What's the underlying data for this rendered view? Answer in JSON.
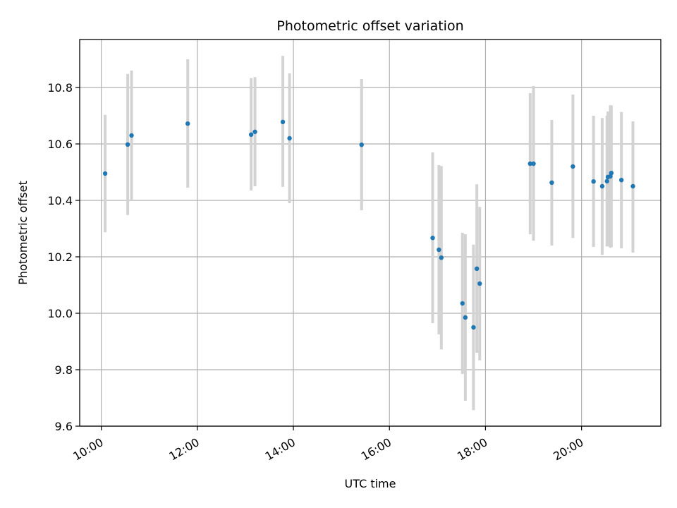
{
  "chart_data": {
    "type": "scatter",
    "title": "Photometric offset variation",
    "xlabel": "UTC time",
    "ylabel": "Photometric offset",
    "x_unit": "UTC time of day (hours)",
    "xlim": [
      9.55,
      21.65
    ],
    "ylim": [
      9.6,
      10.97
    ],
    "x_ticks": [
      {
        "value": 10,
        "label": "10:00"
      },
      {
        "value": 12,
        "label": "12:00"
      },
      {
        "value": 14,
        "label": "14:00"
      },
      {
        "value": 16,
        "label": "16:00"
      },
      {
        "value": 18,
        "label": "18:00"
      },
      {
        "value": 20,
        "label": "20:00"
      }
    ],
    "y_ticks": [
      {
        "value": 9.6,
        "label": "9.6"
      },
      {
        "value": 9.8,
        "label": "9.8"
      },
      {
        "value": 10.0,
        "label": "10.0"
      },
      {
        "value": 10.2,
        "label": "10.2"
      },
      {
        "value": 10.4,
        "label": "10.4"
      },
      {
        "value": 10.6,
        "label": "10.6"
      },
      {
        "value": 10.8,
        "label": "10.8"
      }
    ],
    "grid": true,
    "marker_color": "#1f77b4",
    "errorbar_color": "#d3d3d3",
    "points": [
      {
        "t": 10.08,
        "y": 10.495,
        "lo": 10.287,
        "hi": 10.703
      },
      {
        "t": 10.55,
        "y": 10.598,
        "lo": 10.348,
        "hi": 10.848
      },
      {
        "t": 10.63,
        "y": 10.63,
        "lo": 10.4,
        "hi": 10.86
      },
      {
        "t": 11.8,
        "y": 10.672,
        "lo": 10.445,
        "hi": 10.9
      },
      {
        "t": 13.12,
        "y": 10.633,
        "lo": 10.435,
        "hi": 10.833
      },
      {
        "t": 13.2,
        "y": 10.643,
        "lo": 10.45,
        "hi": 10.837
      },
      {
        "t": 13.78,
        "y": 10.678,
        "lo": 10.448,
        "hi": 10.912
      },
      {
        "t": 13.92,
        "y": 10.62,
        "lo": 10.39,
        "hi": 10.85
      },
      {
        "t": 15.42,
        "y": 10.597,
        "lo": 10.365,
        "hi": 10.83
      },
      {
        "t": 16.9,
        "y": 10.267,
        "lo": 9.965,
        "hi": 10.57
      },
      {
        "t": 17.03,
        "y": 10.225,
        "lo": 9.925,
        "hi": 10.525
      },
      {
        "t": 17.08,
        "y": 10.197,
        "lo": 9.872,
        "hi": 10.522
      },
      {
        "t": 17.52,
        "y": 10.035,
        "lo": 9.785,
        "hi": 10.285
      },
      {
        "t": 17.58,
        "y": 9.985,
        "lo": 9.69,
        "hi": 10.28
      },
      {
        "t": 17.75,
        "y": 9.95,
        "lo": 9.657,
        "hi": 10.243
      },
      {
        "t": 17.82,
        "y": 10.158,
        "lo": 9.86,
        "hi": 10.457
      },
      {
        "t": 17.88,
        "y": 10.105,
        "lo": 9.833,
        "hi": 10.377
      },
      {
        "t": 18.93,
        "y": 10.53,
        "lo": 10.28,
        "hi": 10.78
      },
      {
        "t": 19.0,
        "y": 10.53,
        "lo": 10.257,
        "hi": 10.805
      },
      {
        "t": 19.38,
        "y": 10.463,
        "lo": 10.24,
        "hi": 10.685
      },
      {
        "t": 19.82,
        "y": 10.52,
        "lo": 10.267,
        "hi": 10.775
      },
      {
        "t": 20.25,
        "y": 10.467,
        "lo": 10.235,
        "hi": 10.7
      },
      {
        "t": 20.43,
        "y": 10.45,
        "lo": 10.207,
        "hi": 10.692
      },
      {
        "t": 20.53,
        "y": 10.468,
        "lo": 10.237,
        "hi": 10.7
      },
      {
        "t": 20.55,
        "y": 10.483,
        "lo": 10.237,
        "hi": 10.715
      },
      {
        "t": 20.6,
        "y": 10.485,
        "lo": 10.232,
        "hi": 10.737
      },
      {
        "t": 20.62,
        "y": 10.497,
        "lo": 10.235,
        "hi": 10.737
      },
      {
        "t": 20.83,
        "y": 10.472,
        "lo": 10.23,
        "hi": 10.713
      },
      {
        "t": 21.07,
        "y": 10.45,
        "lo": 10.215,
        "hi": 10.68
      }
    ]
  }
}
